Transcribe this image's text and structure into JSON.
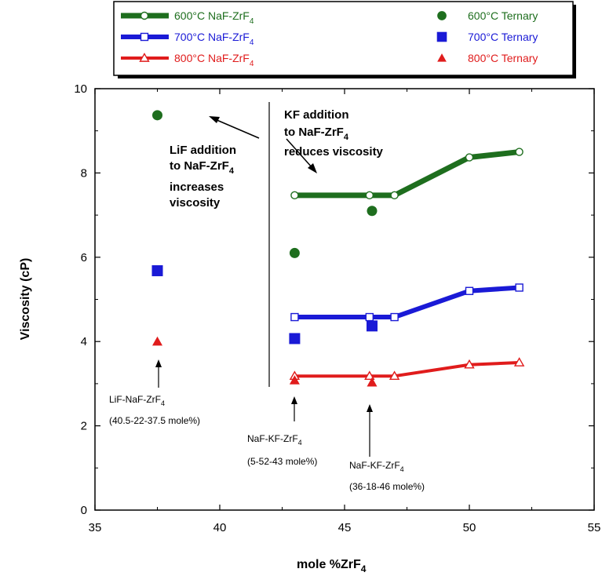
{
  "chart_data": {
    "type": "scatter",
    "xlabel": "mole %ZrF",
    "xlabel_sub": "4",
    "ylabel": "Viscosity (cP)",
    "xlim": [
      35,
      55
    ],
    "ylim": [
      0,
      10
    ],
    "x_ticks": [
      35,
      40,
      45,
      50,
      55
    ],
    "y_ticks": [
      0,
      2,
      4,
      6,
      8,
      10
    ],
    "grid": false,
    "legend_position": "top",
    "series": [
      {
        "name": "600°C NaF-ZrF",
        "name_sub": "4",
        "kind": "line",
        "color": "#1e6e1e",
        "marker": "circle-open",
        "x": [
          43,
          46,
          47,
          50,
          52
        ],
        "y": [
          7.47,
          7.47,
          7.47,
          8.37,
          8.5
        ]
      },
      {
        "name": "700°C NaF-ZrF",
        "name_sub": "4",
        "kind": "line",
        "color": "#1a1ad6",
        "marker": "square-open",
        "x": [
          43,
          46,
          47,
          50,
          52
        ],
        "y": [
          4.58,
          4.58,
          4.58,
          5.2,
          5.28
        ]
      },
      {
        "name": "800°C NaF-ZrF",
        "name_sub": "4",
        "kind": "line",
        "color": "#e01c1c",
        "marker": "triangle-open",
        "x": [
          43,
          46,
          47,
          50,
          52
        ],
        "y": [
          3.18,
          3.18,
          3.18,
          3.45,
          3.5
        ]
      },
      {
        "name": "600°C Ternary",
        "kind": "point",
        "color": "#1e6e1e",
        "marker": "circle-filled",
        "x": [
          37.5,
          43,
          46.1
        ],
        "y": [
          9.37,
          6.1,
          7.1
        ]
      },
      {
        "name": "700°C Ternary",
        "kind": "point",
        "color": "#1a1ad6",
        "marker": "square-filled",
        "x": [
          37.5,
          43,
          46.1
        ],
        "y": [
          5.68,
          4.07,
          4.37
        ]
      },
      {
        "name": "800°C Ternary",
        "kind": "point",
        "color": "#e01c1c",
        "marker": "triangle-filled",
        "x": [
          37.5,
          43,
          46.1
        ],
        "y": [
          4.0,
          3.08,
          3.03
        ]
      }
    ],
    "annotations": {
      "lif": {
        "lines": [
          "LiF  addition",
          "to NaF-ZrF",
          "increases",
          "viscosity"
        ],
        "sub_line": 1,
        "sub": "4"
      },
      "kf": {
        "lines": [
          "KF  addition",
          "to NaF-ZrF",
          "reduces viscosity"
        ],
        "sub_line": 1,
        "sub": "4"
      },
      "comp1": {
        "line1": "LiF-NaF-ZrF",
        "sub": "4",
        "line2": "(40.5-22-37.5 mole%)"
      },
      "comp2": {
        "line1": "NaF-KF-ZrF",
        "sub": "4",
        "line2": "(5-52-43 mole%)"
      },
      "comp3": {
        "line1": "NaF-KF-ZrF",
        "sub": "4",
        "line2": "(36-18-46 mole%)"
      }
    }
  }
}
